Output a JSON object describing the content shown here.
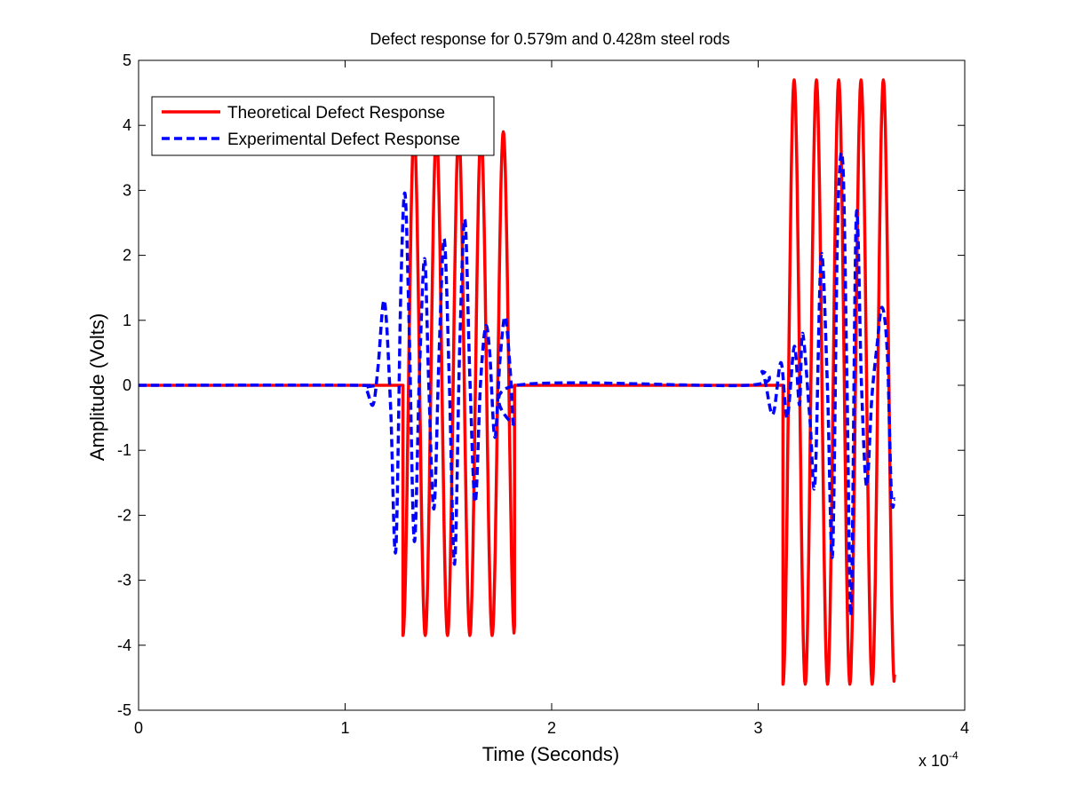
{
  "chart_data": {
    "type": "line",
    "title": "Defect response for 0.579m and 0.428m steel rods",
    "xlabel": "Time (Seconds)",
    "ylabel": "Amplitude (Volts)",
    "xlim": [
      0,
      4
    ],
    "ylim": [
      -5,
      5
    ],
    "x_scale_note": "x 10",
    "x_scale_exponent": "-4",
    "xticks": [
      "0",
      "1",
      "2",
      "3",
      "4"
    ],
    "yticks": [
      "5",
      "4",
      "3",
      "2",
      "1",
      "0",
      "-1",
      "-2",
      "-3",
      "-4",
      "-5"
    ],
    "grid": false,
    "legend_position": "top-left",
    "series": [
      {
        "name": "Theoretical Defect Response",
        "color": "#ff0000",
        "style": "solid",
        "segments": [
          {
            "x": [
              0,
              1.28
            ],
            "y": [
              0,
              0
            ]
          },
          {
            "x": [
              1.28,
              1.82
            ],
            "start_amp": -3.85,
            "peak_amp": 3.9,
            "trough_amp": -3.85,
            "period": 0.108,
            "end_y": -3.7
          },
          {
            "x": [
              1.82,
              3.12
            ],
            "y": [
              0,
              0
            ]
          },
          {
            "x": [
              3.12,
              3.66
            ],
            "start_amp": -4.6,
            "peak_amp": 4.7,
            "trough_amp": -4.6,
            "period": 0.108,
            "end_y": -4.45
          }
        ]
      },
      {
        "name": "Experimental Defect Response",
        "color": "#0000ff",
        "style": "dashed",
        "points": [
          [
            0.0,
            0.0
          ],
          [
            1.05,
            0.0
          ],
          [
            1.1,
            -0.05
          ],
          [
            1.135,
            -0.3
          ],
          [
            1.16,
            0.3
          ],
          [
            1.19,
            1.3
          ],
          [
            1.22,
            -0.3
          ],
          [
            1.245,
            -2.55
          ],
          [
            1.27,
            1.5
          ],
          [
            1.29,
            2.95
          ],
          [
            1.31,
            0.9
          ],
          [
            1.335,
            -2.4
          ],
          [
            1.36,
            0.2
          ],
          [
            1.385,
            1.95
          ],
          [
            1.405,
            0.0
          ],
          [
            1.43,
            -1.9
          ],
          [
            1.455,
            0.5
          ],
          [
            1.48,
            2.25
          ],
          [
            1.505,
            0.0
          ],
          [
            1.53,
            -2.75
          ],
          [
            1.555,
            0.6
          ],
          [
            1.58,
            2.55
          ],
          [
            1.605,
            0.0
          ],
          [
            1.63,
            -1.8
          ],
          [
            1.655,
            0.0
          ],
          [
            1.68,
            0.9
          ],
          [
            1.7,
            0.5
          ],
          [
            1.725,
            -0.8
          ],
          [
            1.75,
            0.4
          ],
          [
            1.775,
            1.05
          ],
          [
            1.8,
            0.2
          ],
          [
            1.815,
            -0.6
          ],
          [
            1.83,
            0.0
          ],
          [
            2.95,
            0.0
          ],
          [
            3.02,
            0.2
          ],
          [
            3.07,
            -0.45
          ],
          [
            3.11,
            0.35
          ],
          [
            3.14,
            -0.5
          ],
          [
            3.175,
            0.6
          ],
          [
            3.2,
            -0.3
          ],
          [
            3.215,
            0.8
          ],
          [
            3.25,
            -0.5
          ],
          [
            3.275,
            -1.5
          ],
          [
            3.305,
            2.0
          ],
          [
            3.335,
            0.0
          ],
          [
            3.36,
            -2.6
          ],
          [
            3.385,
            2.5
          ],
          [
            3.41,
            3.4
          ],
          [
            3.43,
            0.0
          ],
          [
            3.45,
            -3.5
          ],
          [
            3.475,
            2.6
          ],
          [
            3.5,
            0.0
          ],
          [
            3.525,
            -1.55
          ],
          [
            3.55,
            -0.2
          ],
          [
            3.575,
            0.6
          ],
          [
            3.6,
            1.2
          ],
          [
            3.625,
            0.5
          ],
          [
            3.645,
            -1.7
          ],
          [
            3.66,
            -1.75
          ]
        ]
      }
    ]
  }
}
